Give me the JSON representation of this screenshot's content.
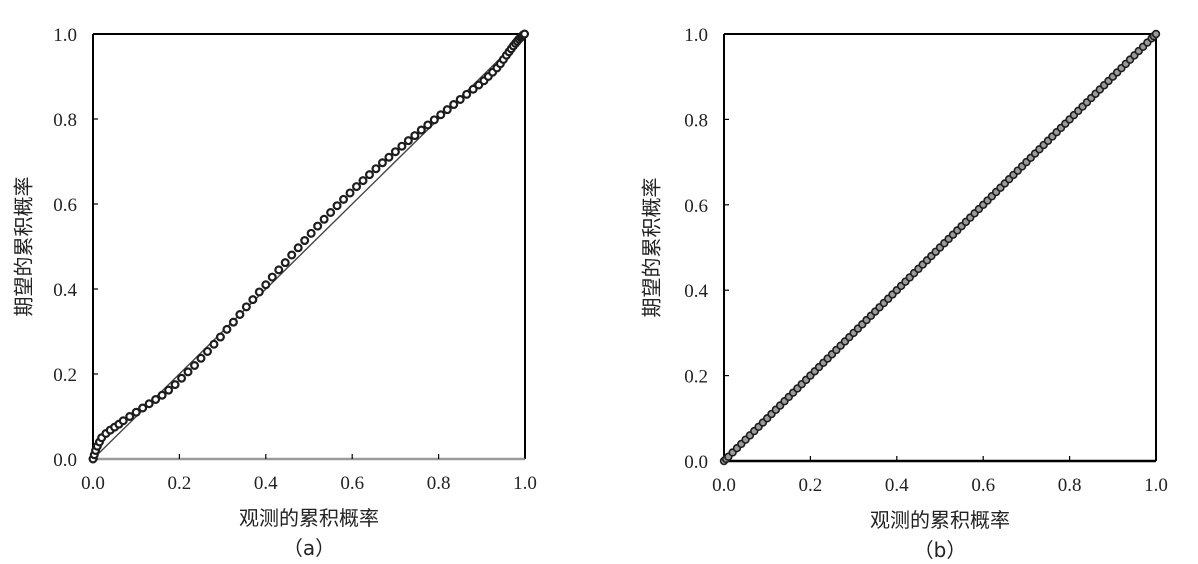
{
  "chart_data": [
    {
      "type": "scatter",
      "panel": "（a）",
      "title": "",
      "xlabel": "观测的累积概率",
      "ylabel": "期望的累积概率",
      "xlim": [
        0.0,
        1.0
      ],
      "ylim": [
        0.0,
        1.0
      ],
      "xticks": [
        "0.0",
        "0.2",
        "0.4",
        "0.6",
        "0.8",
        "1.0"
      ],
      "yticks": [
        "0.0",
        "0.2",
        "0.4",
        "0.6",
        "0.8",
        "1.0"
      ],
      "grid": false,
      "reference_line": {
        "x": [
          0.0,
          1.0
        ],
        "y": [
          0.0,
          1.0
        ]
      },
      "series": [
        {
          "x": [
            0.0,
            0.003,
            0.006,
            0.01,
            0.015,
            0.02,
            0.03,
            0.04,
            0.05,
            0.06,
            0.07,
            0.085,
            0.1,
            0.115,
            0.13,
            0.145,
            0.16,
            0.175,
            0.19,
            0.205,
            0.22,
            0.235,
            0.25,
            0.265,
            0.28,
            0.295,
            0.31,
            0.325,
            0.34,
            0.355,
            0.37,
            0.385,
            0.4,
            0.415,
            0.43,
            0.445,
            0.46,
            0.475,
            0.49,
            0.505,
            0.52,
            0.535,
            0.55,
            0.565,
            0.58,
            0.595,
            0.61,
            0.625,
            0.64,
            0.655,
            0.67,
            0.685,
            0.7,
            0.715,
            0.73,
            0.745,
            0.76,
            0.775,
            0.79,
            0.805,
            0.82,
            0.835,
            0.85,
            0.865,
            0.88,
            0.893,
            0.905,
            0.915,
            0.925,
            0.935,
            0.943,
            0.95,
            0.957,
            0.963,
            0.968,
            0.973,
            0.978,
            0.982,
            0.986,
            0.99,
            0.993,
            0.996,
            0.999
          ],
          "y": [
            0.0,
            0.01,
            0.02,
            0.03,
            0.04,
            0.05,
            0.06,
            0.068,
            0.075,
            0.082,
            0.09,
            0.1,
            0.11,
            0.12,
            0.13,
            0.14,
            0.15,
            0.162,
            0.175,
            0.19,
            0.205,
            0.22,
            0.237,
            0.253,
            0.27,
            0.287,
            0.305,
            0.322,
            0.34,
            0.358,
            0.375,
            0.393,
            0.41,
            0.428,
            0.445,
            0.462,
            0.48,
            0.497,
            0.514,
            0.531,
            0.548,
            0.564,
            0.58,
            0.596,
            0.611,
            0.626,
            0.641,
            0.655,
            0.669,
            0.683,
            0.697,
            0.71,
            0.723,
            0.736,
            0.749,
            0.761,
            0.774,
            0.786,
            0.798,
            0.81,
            0.822,
            0.834,
            0.846,
            0.858,
            0.87,
            0.88,
            0.89,
            0.9,
            0.91,
            0.92,
            0.93,
            0.94,
            0.95,
            0.958,
            0.965,
            0.972,
            0.978,
            0.983,
            0.988,
            0.992,
            0.995,
            0.998,
            1.0
          ]
        }
      ]
    },
    {
      "type": "scatter",
      "panel": "（b）",
      "title": "",
      "xlabel": "观测的累积概率",
      "ylabel": "期望的累积概率",
      "xlim": [
        0.0,
        1.0
      ],
      "ylim": [
        0.0,
        1.0
      ],
      "xticks": [
        "0.0",
        "0.2",
        "0.4",
        "0.6",
        "0.8",
        "1.0"
      ],
      "yticks": [
        "0.0",
        "0.2",
        "0.4",
        "0.6",
        "0.8",
        "1.0"
      ],
      "grid": false,
      "reference_line": {
        "x": [
          0.0,
          1.0
        ],
        "y": [
          0.0,
          1.0
        ]
      },
      "series": [
        {
          "x": [
            0.0,
            0.005,
            0.01,
            0.02,
            0.03,
            0.04,
            0.05,
            0.06,
            0.07,
            0.08,
            0.09,
            0.1,
            0.11,
            0.12,
            0.13,
            0.14,
            0.15,
            0.16,
            0.17,
            0.18,
            0.19,
            0.2,
            0.21,
            0.22,
            0.23,
            0.24,
            0.25,
            0.26,
            0.27,
            0.28,
            0.29,
            0.3,
            0.31,
            0.32,
            0.33,
            0.34,
            0.35,
            0.36,
            0.37,
            0.38,
            0.39,
            0.4,
            0.41,
            0.42,
            0.43,
            0.44,
            0.45,
            0.46,
            0.47,
            0.48,
            0.49,
            0.5,
            0.51,
            0.52,
            0.53,
            0.54,
            0.55,
            0.56,
            0.57,
            0.58,
            0.59,
            0.6,
            0.61,
            0.62,
            0.63,
            0.64,
            0.65,
            0.66,
            0.67,
            0.68,
            0.69,
            0.7,
            0.71,
            0.72,
            0.73,
            0.74,
            0.75,
            0.76,
            0.77,
            0.78,
            0.79,
            0.8,
            0.81,
            0.82,
            0.83,
            0.84,
            0.85,
            0.86,
            0.87,
            0.88,
            0.89,
            0.9,
            0.91,
            0.92,
            0.93,
            0.94,
            0.95,
            0.96,
            0.97,
            0.98,
            0.99,
            0.995,
            1.0
          ],
          "y": [
            0.0,
            0.005,
            0.01,
            0.02,
            0.03,
            0.04,
            0.05,
            0.06,
            0.07,
            0.08,
            0.09,
            0.1,
            0.11,
            0.12,
            0.13,
            0.14,
            0.15,
            0.16,
            0.17,
            0.18,
            0.19,
            0.2,
            0.21,
            0.22,
            0.23,
            0.24,
            0.25,
            0.26,
            0.27,
            0.28,
            0.29,
            0.3,
            0.31,
            0.32,
            0.33,
            0.34,
            0.35,
            0.36,
            0.37,
            0.38,
            0.39,
            0.4,
            0.41,
            0.42,
            0.43,
            0.44,
            0.45,
            0.46,
            0.47,
            0.48,
            0.49,
            0.5,
            0.51,
            0.52,
            0.53,
            0.54,
            0.55,
            0.56,
            0.57,
            0.58,
            0.59,
            0.6,
            0.61,
            0.62,
            0.63,
            0.64,
            0.65,
            0.66,
            0.67,
            0.68,
            0.69,
            0.7,
            0.71,
            0.72,
            0.73,
            0.74,
            0.75,
            0.76,
            0.77,
            0.78,
            0.79,
            0.8,
            0.81,
            0.82,
            0.83,
            0.84,
            0.85,
            0.86,
            0.87,
            0.88,
            0.89,
            0.9,
            0.91,
            0.92,
            0.93,
            0.94,
            0.95,
            0.96,
            0.97,
            0.98,
            0.99,
            0.995,
            1.0
          ]
        }
      ]
    }
  ]
}
